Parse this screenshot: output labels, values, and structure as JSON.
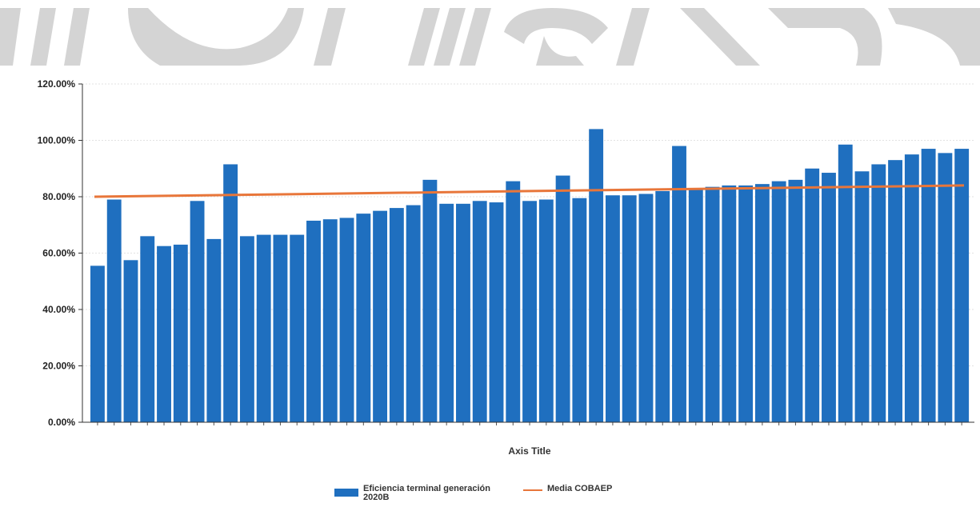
{
  "chart_data": {
    "type": "bar",
    "title": "",
    "xlabel": "Axis Title",
    "ylabel": "",
    "ylim": [
      0,
      120
    ],
    "yticks": [
      "0.00%",
      "20.00%",
      "40.00%",
      "60.00%",
      "80.00%",
      "100.00%",
      "120.00%"
    ],
    "grid": true,
    "legend_position": "bottom",
    "series": [
      {
        "name": "Eficiencia terminal generación 2020B",
        "type": "bar",
        "color": "#1f6fbf",
        "values": [
          55.5,
          79.0,
          57.5,
          66.0,
          62.5,
          63.0,
          78.5,
          65.0,
          91.5,
          66.0,
          66.5,
          66.5,
          66.5,
          71.5,
          72.0,
          72.5,
          74.0,
          75.0,
          76.0,
          77.0,
          86.0,
          77.5,
          77.5,
          78.5,
          78.0,
          85.5,
          78.5,
          79.0,
          87.5,
          79.5,
          104.0,
          80.5,
          80.5,
          81.0,
          82.0,
          98.0,
          82.5,
          83.5,
          84.0,
          84.0,
          84.5,
          85.5,
          86.0,
          90.0,
          88.5,
          98.5,
          89.0,
          91.5,
          93.0,
          95.0,
          97.0,
          95.5,
          97.0
        ]
      },
      {
        "name": "Media COBAEP",
        "type": "line",
        "color": "#e8763a",
        "values": [
          80.0,
          84.0
        ]
      }
    ]
  },
  "legend": {
    "bar_label": "Eficiencia terminal generación 2020B",
    "line_label": "Media COBAEP"
  }
}
